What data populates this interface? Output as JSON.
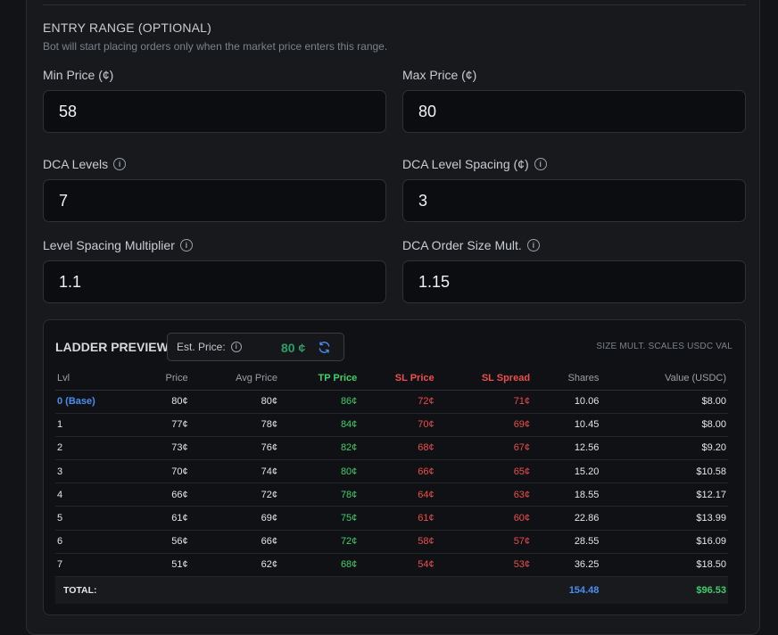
{
  "entry_range": {
    "title": "ENTRY RANGE (OPTIONAL)",
    "subtitle": "Bot will start placing orders only when the market price enters this range."
  },
  "fields": {
    "min_price": {
      "label": "Min Price (¢)",
      "value": "58"
    },
    "max_price": {
      "label": "Max Price (¢)",
      "value": "80"
    },
    "dca_levels": {
      "label": "DCA Levels",
      "value": "7"
    },
    "dca_level_spacing": {
      "label": "DCA Level Spacing (¢)",
      "value": "3"
    },
    "level_spacing_multiplier": {
      "label": "Level Spacing Multiplier",
      "value": "1.1"
    },
    "dca_order_size_mult": {
      "label": "DCA Order Size Mult.",
      "value": "1.15"
    }
  },
  "ladder": {
    "title": "LADDER PREVIEW",
    "est_price_label": "Est. Price:",
    "est_price_value": "80 ¢",
    "scale_note": "SIZE MULT. SCALES USDC VAL",
    "columns": [
      "Lvl",
      "Price",
      "Avg Price",
      "TP Price",
      "SL Price",
      "SL Spread",
      "Shares",
      "Value (USDC)"
    ],
    "rows": [
      [
        "0 (Base)",
        "80¢",
        "80¢",
        "86¢",
        "72¢",
        "71¢",
        "10.06",
        "$8.00"
      ],
      [
        "1",
        "77¢",
        "78¢",
        "84¢",
        "70¢",
        "69¢",
        "10.45",
        "$8.00"
      ],
      [
        "2",
        "73¢",
        "76¢",
        "82¢",
        "68¢",
        "67¢",
        "12.56",
        "$9.20"
      ],
      [
        "3",
        "70¢",
        "74¢",
        "80¢",
        "66¢",
        "65¢",
        "15.20",
        "$10.58"
      ],
      [
        "4",
        "66¢",
        "72¢",
        "78¢",
        "64¢",
        "63¢",
        "18.55",
        "$12.17"
      ],
      [
        "5",
        "61¢",
        "69¢",
        "75¢",
        "61¢",
        "60¢",
        "22.86",
        "$13.99"
      ],
      [
        "6",
        "56¢",
        "66¢",
        "72¢",
        "58¢",
        "57¢",
        "28.55",
        "$16.09"
      ],
      [
        "7",
        "51¢",
        "62¢",
        "68¢",
        "54¢",
        "53¢",
        "36.25",
        "$18.50"
      ]
    ],
    "total_label": "TOTAL:",
    "total_shares": "154.48",
    "total_value": "$96.53"
  },
  "colors": {
    "tp": "#3ecf6b",
    "sl": "#ec4f4f",
    "base": "#4a8ff0",
    "est_price": "#2f9e6a"
  },
  "icons": {
    "info": "info-icon",
    "refresh": "refresh-icon"
  }
}
